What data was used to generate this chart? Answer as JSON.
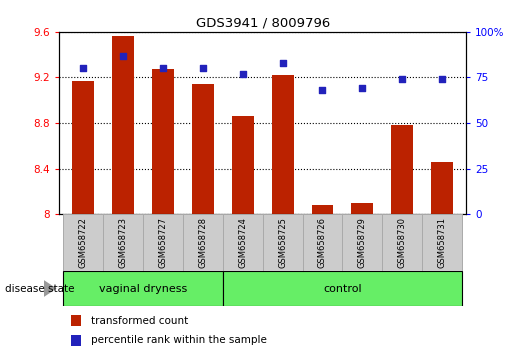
{
  "title": "GDS3941 / 8009796",
  "samples": [
    "GSM658722",
    "GSM658723",
    "GSM658727",
    "GSM658728",
    "GSM658724",
    "GSM658725",
    "GSM658726",
    "GSM658729",
    "GSM658730",
    "GSM658731"
  ],
  "transformed_counts": [
    9.17,
    9.56,
    9.27,
    9.14,
    8.86,
    9.22,
    8.08,
    8.1,
    8.78,
    8.46
  ],
  "percentile_ranks": [
    80,
    87,
    80,
    80,
    77,
    83,
    68,
    69,
    74,
    74
  ],
  "ylim_left": [
    8.0,
    9.6
  ],
  "ylim_right": [
    0,
    100
  ],
  "yticks_left": [
    8.0,
    8.4,
    8.8,
    9.2,
    9.6
  ],
  "yticks_right": [
    0,
    25,
    50,
    75,
    100
  ],
  "ytick_labels_left": [
    "8",
    "8.4",
    "8.8",
    "9.2",
    "9.6"
  ],
  "ytick_labels_right": [
    "0",
    "25",
    "50",
    "75",
    "100%"
  ],
  "vd_indices": [
    0,
    1,
    2,
    3
  ],
  "ctrl_indices": [
    4,
    5,
    6,
    7,
    8,
    9
  ],
  "bar_color": "#bb2200",
  "dot_color": "#2222bb",
  "legend_bar_label": "transformed count",
  "legend_dot_label": "percentile rank within the sample",
  "disease_state_label": "disease state",
  "background_color": "#ffffff",
  "plot_bg_color": "#ffffff",
  "tick_area_color": "#cccccc",
  "group_color": "#66ee66",
  "bar_width": 0.55
}
